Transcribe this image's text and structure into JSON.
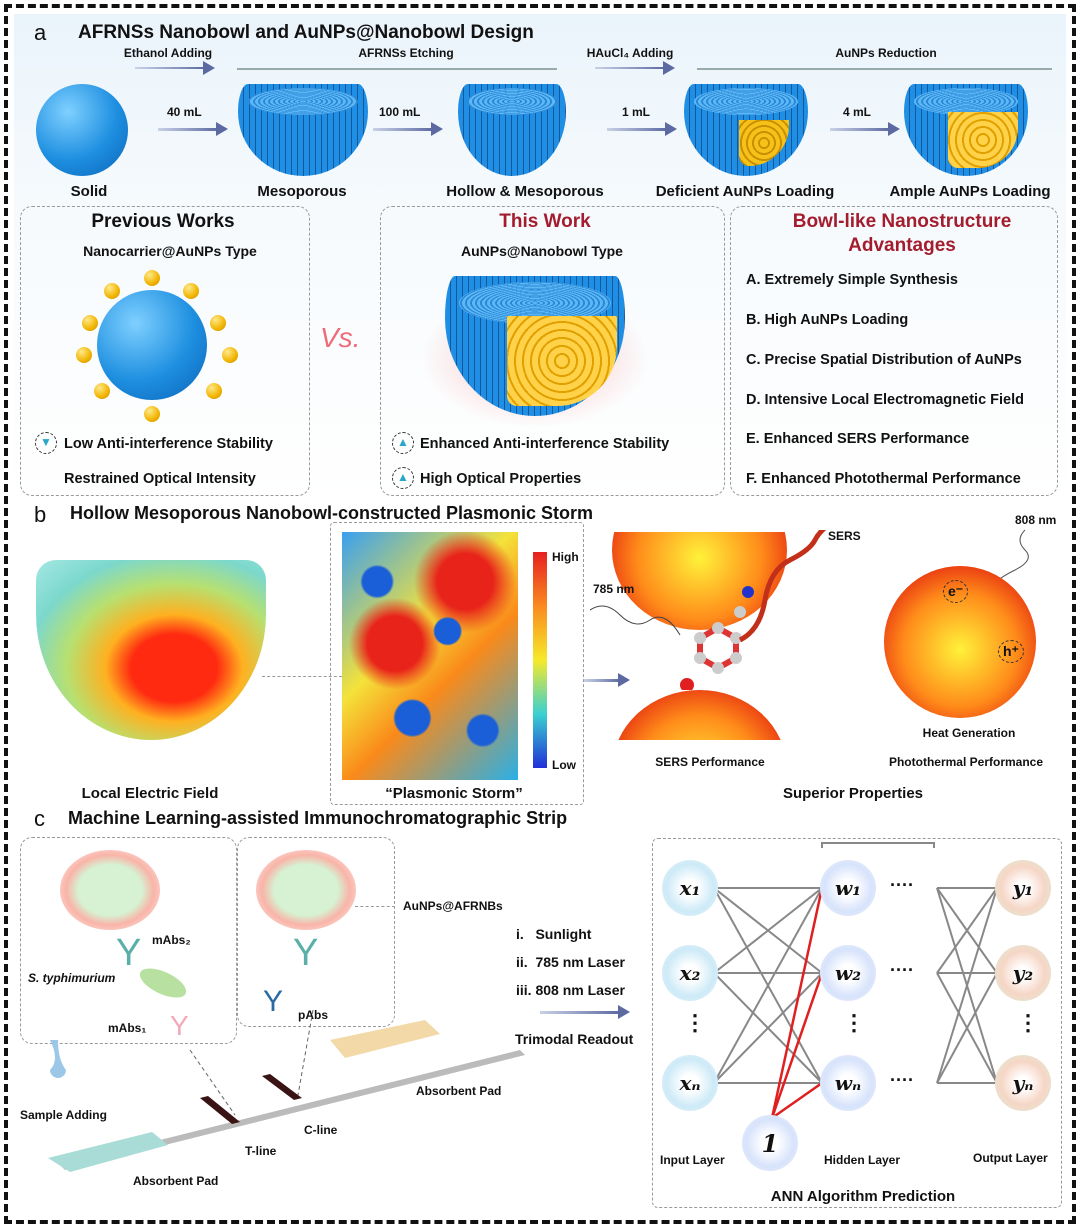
{
  "panel_a": {
    "letter": "a",
    "title": "AFRNSs Nanobowl and AuNPs@Nanobowl Design",
    "steps": [
      "Ethanol Adding",
      "AFRNSs Etching",
      "HAuCl₄ Adding",
      "AuNPs Reduction"
    ],
    "volumes": [
      "40 mL",
      "100 mL",
      "1 mL",
      "4 mL"
    ],
    "stages": [
      "Solid",
      "Mesoporous",
      "Hollow & Mesoporous",
      "Deficient AuNPs Loading",
      "Ample AuNPs Loading"
    ],
    "previous": {
      "title": "Previous Works",
      "subtitle": "Nanocarrier@AuNPs Type",
      "notes": [
        "Low Anti-interference Stability",
        "Restrained Optical Intensity"
      ]
    },
    "vs": "Vs.",
    "this_work": {
      "title": "This Work",
      "subtitle": "AuNPs@Nanobowl Type",
      "notes": [
        "Enhanced Anti-interference Stability",
        "High Optical Properties"
      ]
    },
    "advantages": {
      "title_line1": "Bowl-like Nanostructure",
      "title_line2": "Advantages",
      "items": [
        "A. Extremely Simple Synthesis",
        "B. High AuNPs Loading",
        "C. Precise Spatial Distribution of AuNPs",
        "D. Intensive Local Electromagnetic Field",
        "E. Enhanced SERS Performance",
        "F. Enhanced Photothermal Performance"
      ]
    }
  },
  "panel_b": {
    "letter": "b",
    "title": "Hollow Mesoporous Nanobowl-constructed Plasmonic Storm",
    "local_field": "Local Electric Field",
    "storm": "“Plasmonic Storm”",
    "scale_high": "High",
    "scale_low": "Low",
    "laser_785": "785 nm",
    "sers": "SERS",
    "laser_808": "808 nm",
    "electron": "e⁻",
    "hole": "h⁺",
    "heat": "Heat Generation",
    "sers_perf": "SERS Performance",
    "photo_perf": "Photothermal Performance",
    "superior": "Superior Properties"
  },
  "panel_c": {
    "letter": "c",
    "title": "Machine Learning-assisted Immunochromatographic Strip",
    "mabs2": "mAbs₂",
    "bacteria": "S. typhimurium",
    "mabs1": "mAbs₁",
    "pabs": "pAbs",
    "probe": "AuNPs@AFRNBs",
    "sample": "Sample Adding",
    "pad_left": "Absorbent Pad",
    "pad_right": "Absorbent Pad",
    "tline": "T-line",
    "cline": "C-line",
    "readouts": [
      "i.   Sunlight",
      "ii.  785 nm Laser",
      "iii. 808 nm Laser"
    ],
    "trimodal": "Trimodal Readout",
    "ann": {
      "inputs": [
        "x₁",
        "x₂",
        "xₙ"
      ],
      "hidden": [
        "w₁",
        "w₂",
        "wₙ"
      ],
      "outputs": [
        "y₁",
        "y₂",
        "yₙ"
      ],
      "bias": "1",
      "dots": "⋮",
      "hdots": "····",
      "input_layer": "Input Layer",
      "hidden_layer": "Hidden Layer",
      "output_layer": "Output Layer",
      "caption": "ANN Algorithm Prediction"
    }
  },
  "colors": {
    "accent_red": "#a31d2f",
    "bowl_blue": "#1f8fe6",
    "gold": "#f1b400",
    "arrow": "#5d6aa2"
  }
}
